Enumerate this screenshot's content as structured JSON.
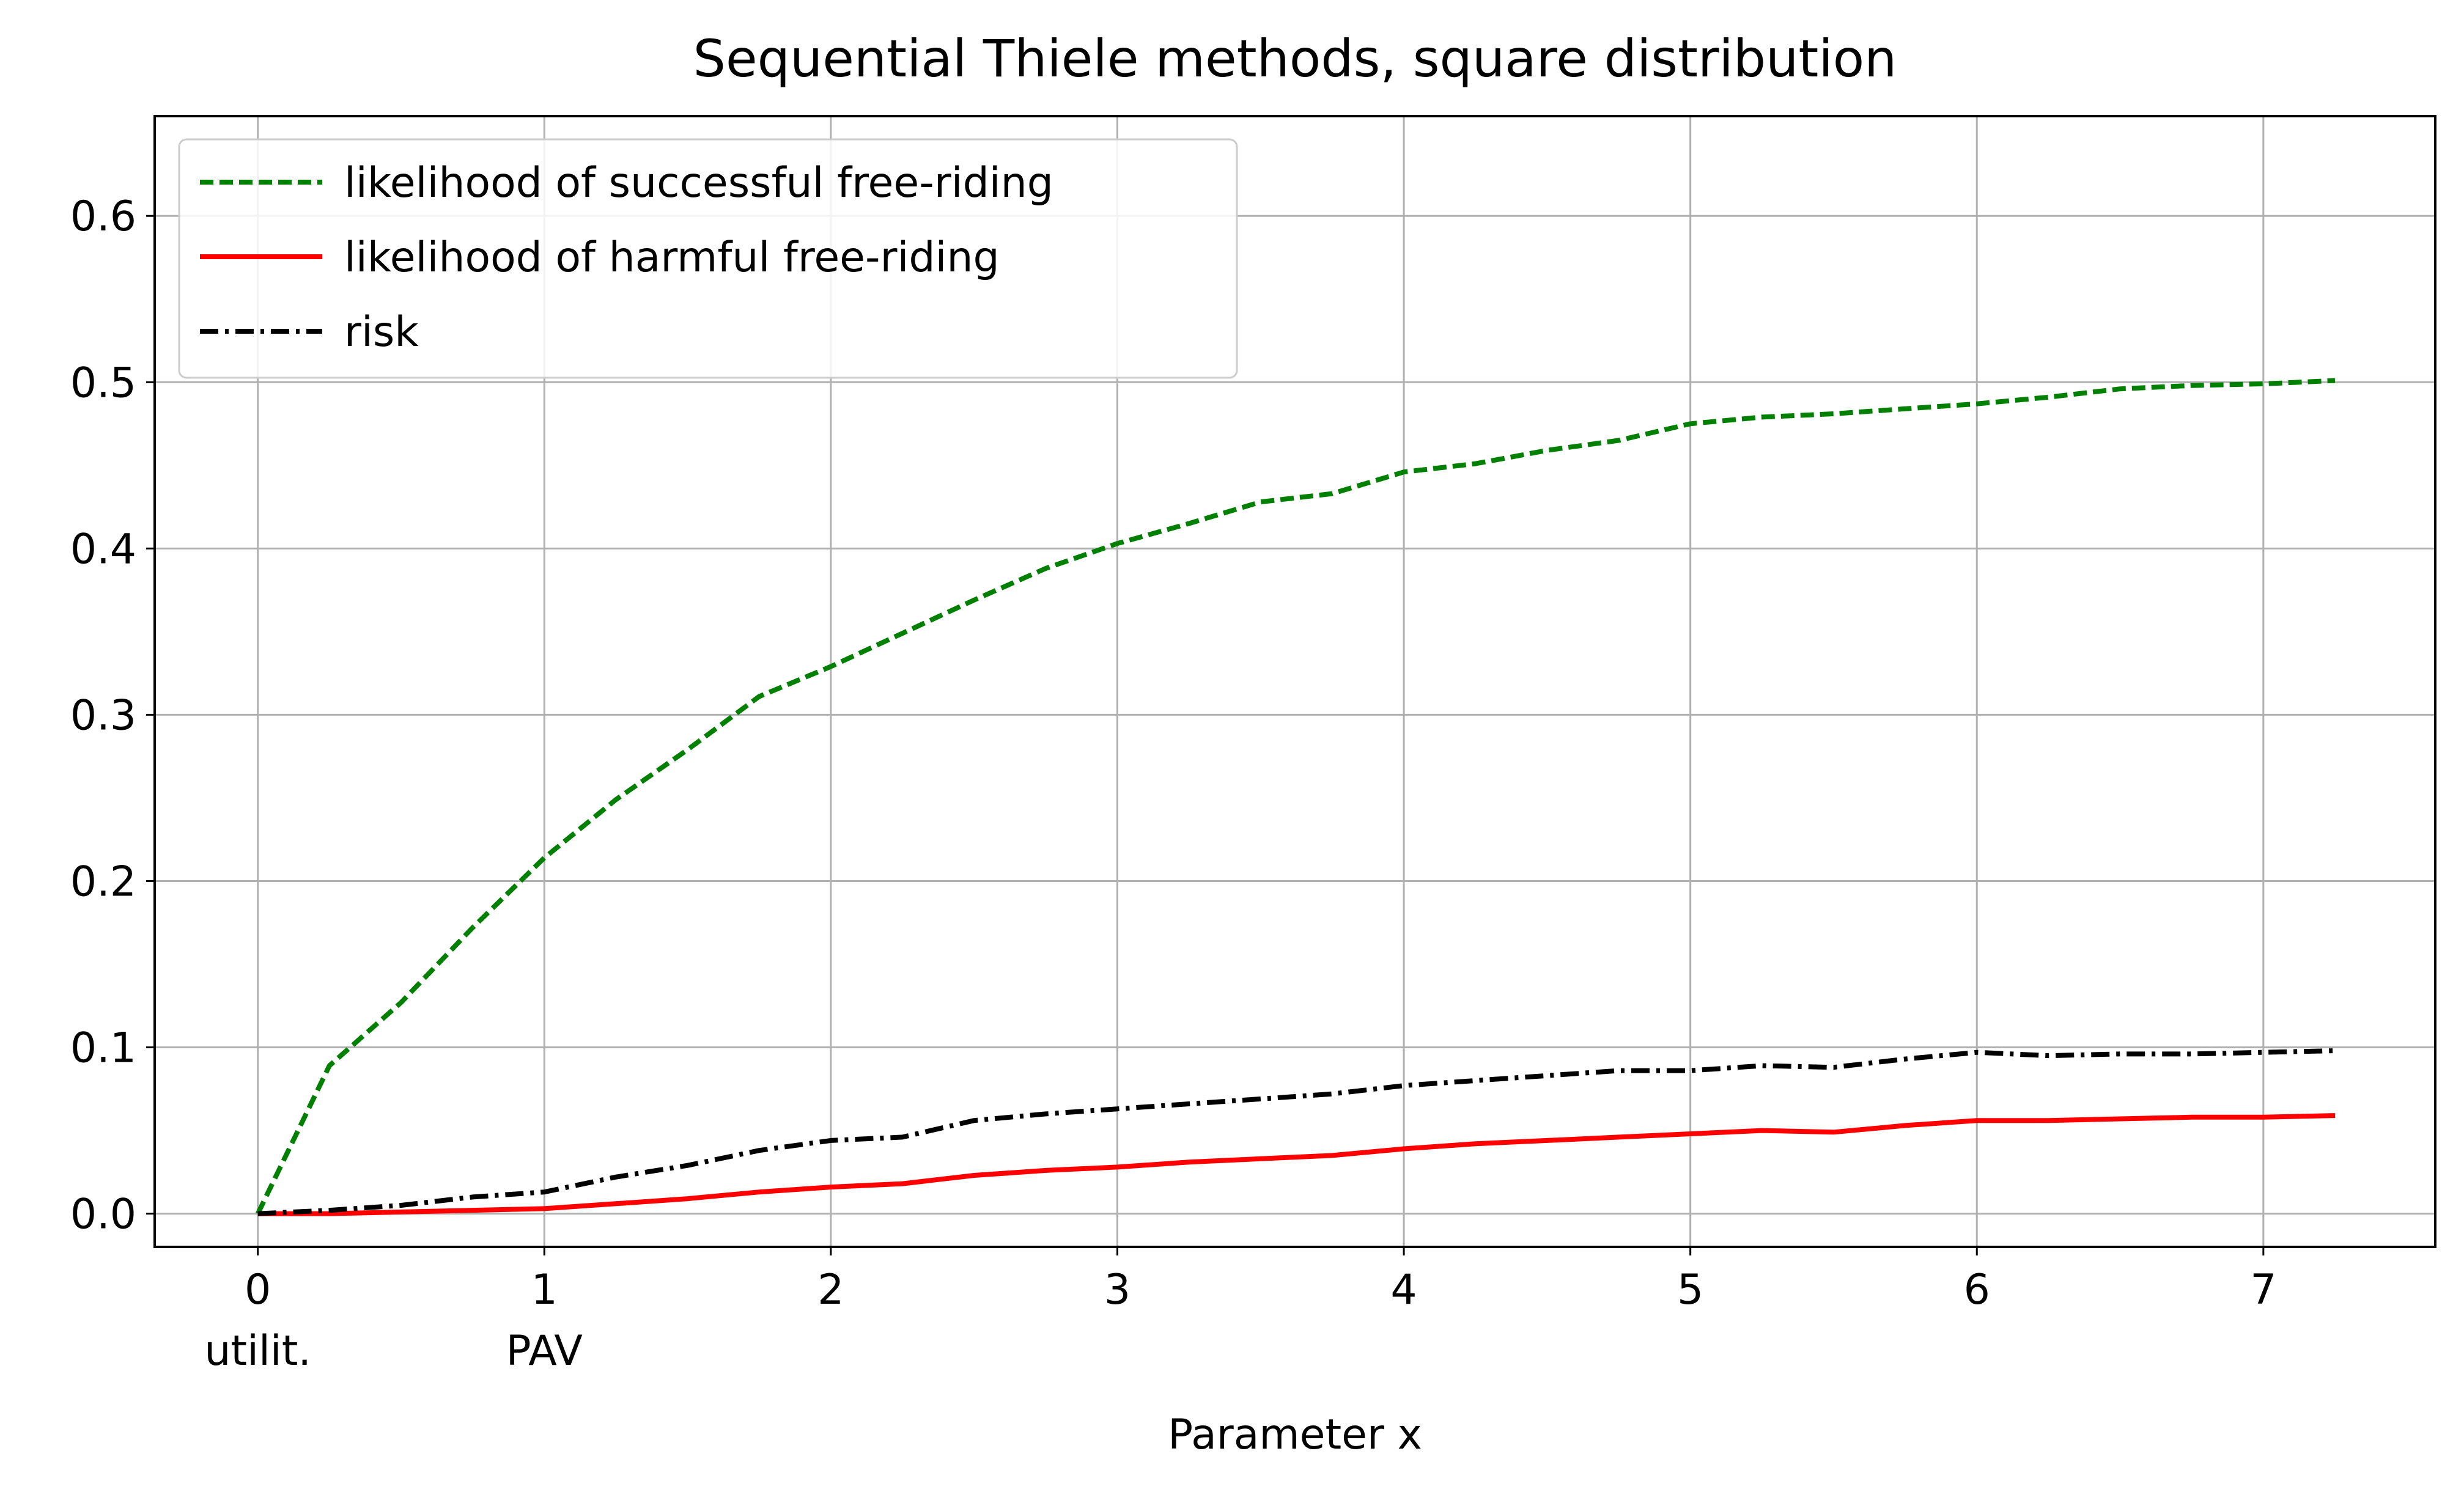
{
  "chart_data": {
    "type": "line",
    "title": "Sequential Thiele methods, square distribution",
    "xlabel": "Parameter x",
    "ylabel": "",
    "xlim": [
      -0.36,
      7.6
    ],
    "ylim": [
      -0.02,
      0.66
    ],
    "xticks": [
      0,
      1,
      2,
      3,
      4,
      5,
      6,
      7
    ],
    "xtick_sublabels": [
      {
        "x": 0,
        "label": "utilit."
      },
      {
        "x": 1,
        "label": "PAV"
      }
    ],
    "yticks": [
      "0.0",
      "0.1",
      "0.2",
      "0.3",
      "0.4",
      "0.5",
      "0.6"
    ],
    "grid": true,
    "legend_position": "top-left",
    "series": [
      {
        "name": "likelihood of successful free-riding",
        "color": "#008000",
        "style": "dashed",
        "x": [
          0,
          0.25,
          0.5,
          0.75,
          1,
          1.25,
          1.5,
          1.75,
          2,
          2.25,
          2.5,
          2.75,
          3,
          3.25,
          3.5,
          3.75,
          4,
          4.25,
          4.5,
          4.75,
          5,
          5.25,
          5.5,
          5.75,
          6,
          6.25,
          6.5,
          6.75,
          7,
          7.25
        ],
        "y": [
          0,
          0.089,
          0.127,
          0.172,
          0.214,
          0.249,
          0.279,
          0.311,
          0.329,
          0.349,
          0.369,
          0.388,
          0.403,
          0.415,
          0.428,
          0.433,
          0.446,
          0.451,
          0.459,
          0.465,
          0.475,
          0.479,
          0.481,
          0.484,
          0.487,
          0.491,
          0.496,
          0.498,
          0.499,
          0.501
        ]
      },
      {
        "name": "likelihood of harmful free-riding",
        "color": "#ff0000",
        "style": "solid",
        "x": [
          0,
          0.25,
          0.5,
          0.75,
          1,
          1.25,
          1.5,
          1.75,
          2,
          2.25,
          2.5,
          2.75,
          3,
          3.25,
          3.5,
          3.75,
          4,
          4.25,
          4.5,
          4.75,
          5,
          5.25,
          5.5,
          5.75,
          6,
          6.25,
          6.5,
          6.75,
          7,
          7.25
        ],
        "y": [
          0,
          0,
          0.001,
          0.002,
          0.003,
          0.006,
          0.009,
          0.013,
          0.016,
          0.018,
          0.023,
          0.026,
          0.028,
          0.031,
          0.033,
          0.035,
          0.039,
          0.042,
          0.044,
          0.046,
          0.048,
          0.05,
          0.049,
          0.053,
          0.056,
          0.056,
          0.057,
          0.058,
          0.058,
          0.059
        ]
      },
      {
        "name": "risk",
        "color": "#000000",
        "style": "dashdot",
        "x": [
          0,
          0.25,
          0.5,
          0.75,
          1,
          1.25,
          1.5,
          1.75,
          2,
          2.25,
          2.5,
          2.75,
          3,
          3.25,
          3.5,
          3.75,
          4,
          4.25,
          4.5,
          4.75,
          5,
          5.25,
          5.5,
          5.75,
          6,
          6.25,
          6.5,
          6.75,
          7,
          7.25
        ],
        "y": [
          0,
          0.002,
          0.005,
          0.01,
          0.013,
          0.022,
          0.029,
          0.038,
          0.044,
          0.046,
          0.056,
          0.06,
          0.063,
          0.066,
          0.069,
          0.072,
          0.077,
          0.08,
          0.083,
          0.086,
          0.086,
          0.089,
          0.088,
          0.093,
          0.097,
          0.095,
          0.096,
          0.096,
          0.097,
          0.098
        ]
      }
    ]
  }
}
